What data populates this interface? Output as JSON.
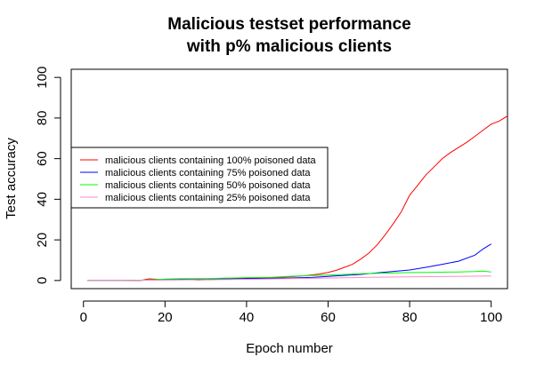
{
  "chart_data": {
    "type": "line",
    "title_line1": "Malicious testset performance",
    "title_line2": "with p% malicious clients",
    "xlabel": "Epoch number",
    "ylabel": "Test accuracy",
    "xlim": [
      -3,
      104
    ],
    "ylim": [
      -4,
      104
    ],
    "xticks": [
      0,
      20,
      40,
      60,
      80,
      100
    ],
    "yticks": [
      0,
      20,
      40,
      60,
      80,
      100
    ],
    "legend_position": "left",
    "series": [
      {
        "name": "malicious clients containing 100% poisoned data",
        "color": "#ff0000",
        "points": [
          [
            1,
            0
          ],
          [
            10,
            0
          ],
          [
            14,
            0
          ],
          [
            16,
            0.8
          ],
          [
            20,
            0.4
          ],
          [
            24,
            0.6
          ],
          [
            28,
            0.3
          ],
          [
            32,
            0.5
          ],
          [
            36,
            0.9
          ],
          [
            40,
            1.1
          ],
          [
            44,
            1.3
          ],
          [
            48,
            1.6
          ],
          [
            52,
            2.0
          ],
          [
            55,
            2.5
          ],
          [
            58,
            3.2
          ],
          [
            60,
            4.0
          ],
          [
            62,
            5.0
          ],
          [
            64,
            6.5
          ],
          [
            66,
            8.0
          ],
          [
            68,
            10.5
          ],
          [
            70,
            13.5
          ],
          [
            72,
            17.5
          ],
          [
            74,
            22.5
          ],
          [
            76,
            28
          ],
          [
            78,
            34
          ],
          [
            80,
            42
          ],
          [
            82,
            47
          ],
          [
            84,
            52
          ],
          [
            86,
            56
          ],
          [
            88,
            60
          ],
          [
            90,
            63
          ],
          [
            92,
            65.5
          ],
          [
            94,
            68
          ],
          [
            96,
            71
          ],
          [
            98,
            74
          ],
          [
            100,
            77
          ],
          [
            102,
            78.5
          ],
          [
            104,
            81
          ]
        ]
      },
      {
        "name": "malicious clients containing 75% poisoned data",
        "color": "#0000ff",
        "points": [
          [
            1,
            0
          ],
          [
            10,
            0
          ],
          [
            16,
            0.2
          ],
          [
            20,
            0.5
          ],
          [
            30,
            0.7
          ],
          [
            40,
            1.0
          ],
          [
            50,
            1.2
          ],
          [
            56,
            1.5
          ],
          [
            60,
            2.0
          ],
          [
            64,
            2.5
          ],
          [
            68,
            3.0
          ],
          [
            72,
            3.8
          ],
          [
            76,
            4.5
          ],
          [
            80,
            5.2
          ],
          [
            84,
            6.5
          ],
          [
            88,
            8.0
          ],
          [
            92,
            9.5
          ],
          [
            96,
            12.5
          ],
          [
            98,
            15.5
          ],
          [
            100,
            18
          ]
        ]
      },
      {
        "name": "malicious clients containing 50% poisoned data",
        "color": "#00ff00",
        "points": [
          [
            1,
            0
          ],
          [
            10,
            0
          ],
          [
            16,
            0.3
          ],
          [
            20,
            0.7
          ],
          [
            24,
            0.9
          ],
          [
            30,
            1.0
          ],
          [
            36,
            1.2
          ],
          [
            40,
            1.4
          ],
          [
            46,
            1.6
          ],
          [
            50,
            2.0
          ],
          [
            55,
            2.4
          ],
          [
            60,
            2.7
          ],
          [
            64,
            3.0
          ],
          [
            68,
            3.3
          ],
          [
            72,
            3.5
          ],
          [
            76,
            3.7
          ],
          [
            80,
            3.9
          ],
          [
            84,
            4.0
          ],
          [
            88,
            4.1
          ],
          [
            92,
            4.2
          ],
          [
            96,
            4.4
          ],
          [
            98,
            4.6
          ],
          [
            100,
            4.2
          ]
        ]
      },
      {
        "name": "malicious clients containing 25% poisoned data",
        "color": "#ff88cc",
        "points": [
          [
            1,
            0
          ],
          [
            10,
            0
          ],
          [
            20,
            0.2
          ],
          [
            30,
            0.4
          ],
          [
            40,
            0.6
          ],
          [
            50,
            0.9
          ],
          [
            60,
            1.2
          ],
          [
            70,
            1.6
          ],
          [
            80,
            1.8
          ],
          [
            90,
            2.0
          ],
          [
            100,
            2.2
          ]
        ]
      }
    ]
  }
}
